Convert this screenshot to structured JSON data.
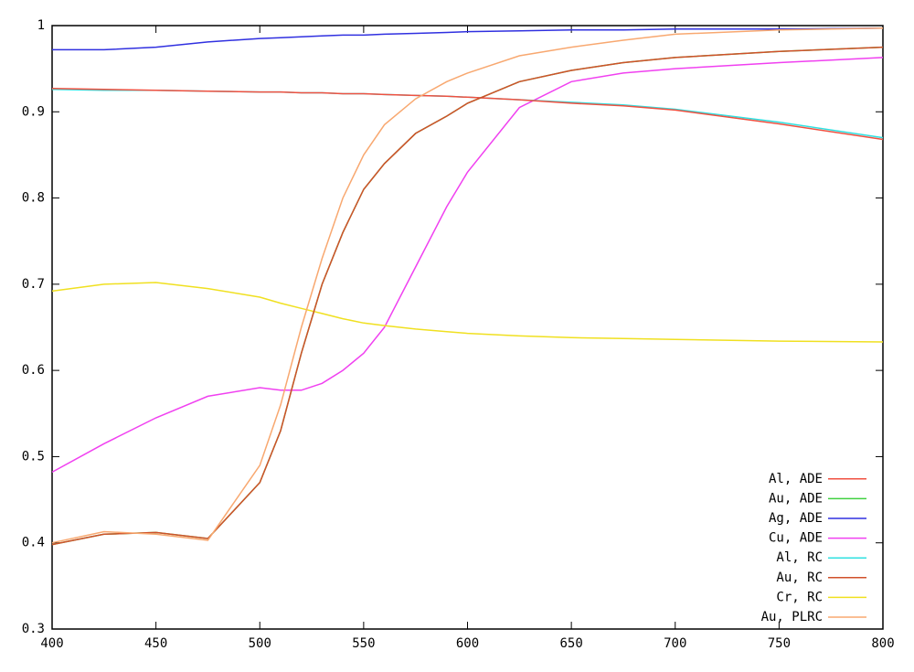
{
  "chart_data": {
    "type": "line",
    "x": [
      400,
      425,
      450,
      475,
      500,
      510,
      520,
      530,
      540,
      550,
      560,
      575,
      590,
      600,
      625,
      650,
      675,
      700,
      750,
      800
    ],
    "series": [
      {
        "name": "Al, ADE",
        "color": "#f05040",
        "values": [
          0.927,
          0.926,
          0.925,
          0.924,
          0.923,
          0.923,
          0.922,
          0.922,
          0.921,
          0.921,
          0.92,
          0.919,
          0.918,
          0.917,
          0.914,
          0.91,
          0.907,
          0.902,
          0.886,
          0.868
        ]
      },
      {
        "name": "Au, ADE",
        "color": "#40d040",
        "values": [
          0.398,
          0.41,
          0.412,
          0.405,
          0.47,
          0.53,
          0.62,
          0.7,
          0.76,
          0.81,
          0.84,
          0.875,
          0.895,
          0.91,
          0.935,
          0.948,
          0.957,
          0.963,
          0.97,
          0.975
        ]
      },
      {
        "name": "Ag, ADE",
        "color": "#3030e0",
        "values": [
          0.972,
          0.972,
          0.975,
          0.981,
          0.985,
          0.986,
          0.987,
          0.988,
          0.989,
          0.989,
          0.99,
          0.991,
          0.992,
          0.993,
          0.994,
          0.995,
          0.995,
          0.996,
          0.996,
          0.997
        ]
      },
      {
        "name": "Cu, ADE",
        "color": "#f040f0",
        "values": [
          0.482,
          0.515,
          0.545,
          0.57,
          0.58,
          0.577,
          0.577,
          0.585,
          0.6,
          0.62,
          0.65,
          0.72,
          0.79,
          0.83,
          0.905,
          0.935,
          0.945,
          0.95,
          0.957,
          0.963
        ]
      },
      {
        "name": "Al, RC",
        "color": "#30e0e0",
        "values": [
          0.926,
          0.925,
          0.925,
          0.924,
          0.923,
          0.923,
          0.922,
          0.922,
          0.921,
          0.921,
          0.92,
          0.919,
          0.918,
          0.917,
          0.914,
          0.911,
          0.908,
          0.903,
          0.888,
          0.87
        ]
      },
      {
        "name": "Au, RC",
        "color": "#d0502a",
        "values": [
          0.398,
          0.41,
          0.412,
          0.405,
          0.47,
          0.53,
          0.62,
          0.7,
          0.76,
          0.81,
          0.84,
          0.875,
          0.895,
          0.91,
          0.935,
          0.948,
          0.957,
          0.963,
          0.97,
          0.975
        ]
      },
      {
        "name": "Cr, RC",
        "color": "#f0e020",
        "values": [
          0.692,
          0.7,
          0.702,
          0.695,
          0.685,
          0.678,
          0.672,
          0.666,
          0.66,
          0.655,
          0.652,
          0.648,
          0.645,
          0.643,
          0.64,
          0.638,
          0.637,
          0.636,
          0.634,
          0.633
        ]
      },
      {
        "name": "Au, PLRC",
        "color": "#f8a870",
        "values": [
          0.4,
          0.413,
          0.41,
          0.403,
          0.49,
          0.56,
          0.65,
          0.73,
          0.8,
          0.85,
          0.885,
          0.915,
          0.935,
          0.945,
          0.965,
          0.975,
          0.983,
          0.99,
          0.995,
          0.997
        ]
      }
    ],
    "xlim": [
      400,
      800
    ],
    "xticks": [
      400,
      450,
      500,
      550,
      600,
      650,
      700,
      750,
      800
    ],
    "ylim": [
      0.3,
      1
    ],
    "yticks": [
      0.3,
      0.4,
      0.5,
      0.6,
      0.7,
      0.8,
      0.9,
      1
    ],
    "legend": "bottom right"
  }
}
